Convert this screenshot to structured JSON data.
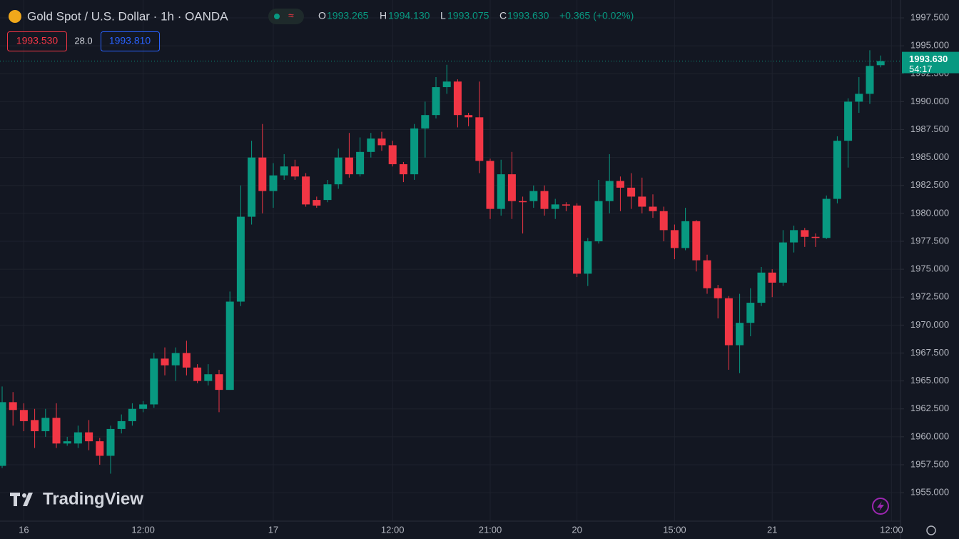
{
  "header": {
    "symbol": "Gold Spot / U.S. Dollar · 1h · OANDA",
    "o_label": "O",
    "o": "1993.265",
    "h_label": "H",
    "h": "1994.130",
    "l_label": "L",
    "l": "1993.075",
    "c_label": "C",
    "c": "1993.630",
    "change": "+0.365 (+0.02%)",
    "bid": "1993.530",
    "spread": "28.0",
    "ask": "1993.810"
  },
  "logo": "TradingView",
  "chart_data": {
    "type": "candlestick",
    "up_color": "#089981",
    "down_color": "#f23645",
    "grid": true,
    "last_price_label": "1993.630",
    "countdown": "54:17",
    "categories": [
      null,
      null,
      "16",
      null,
      null,
      null,
      null,
      null,
      null,
      null,
      null,
      null,
      null,
      "12:00",
      null,
      null,
      null,
      null,
      null,
      null,
      null,
      null,
      null,
      null,
      null,
      "17",
      null,
      null,
      null,
      null,
      null,
      null,
      null,
      null,
      null,
      null,
      "12:00",
      null,
      null,
      null,
      null,
      null,
      null,
      null,
      null,
      "21:00",
      null,
      null,
      null,
      null,
      null,
      null,
      null,
      "20",
      null,
      null,
      null,
      null,
      null,
      null,
      null,
      null,
      "15:00",
      null,
      null,
      null,
      null,
      null,
      null,
      null,
      null,
      "21",
      null,
      null,
      null,
      null,
      null,
      null,
      null,
      null,
      null,
      null,
      "12:00"
    ],
    "open": [
      1957.4,
      1963.1,
      1962.4,
      1961.5,
      1960.5,
      1961.7,
      1959.4,
      1959.4,
      1960.4,
      1959.6,
      1958.3,
      1960.7,
      1961.4,
      1962.5,
      1962.9,
      1967,
      1966.4,
      1967.5,
      1966.2,
      1965,
      1965.6,
      1964.2,
      1972.1,
      1979.7,
      1985,
      1982,
      1983.4,
      1984.2,
      1983.3,
      1981.2,
      1981.2,
      1982.6,
      1985,
      1983.5,
      1985.5,
      1986.7,
      1986.1,
      1984.4,
      1983.5,
      1987.6,
      1988.8,
      1991.3,
      1991.8,
      1988.8,
      1988.6,
      1984.7,
      1980.4,
      1983.5,
      1981.1,
      1981.1,
      1982,
      1980.4,
      1980.8,
      1980.7,
      1974.6,
      1977.5,
      1981.1,
      1982.9,
      1982.3,
      1981.5,
      1980.6,
      1980.2,
      1978.5,
      1976.9,
      1979.3,
      1975.8,
      1973.3,
      1972.4,
      1968.2,
      1970.2,
      1972,
      1974.7,
      1973.8,
      1977.4,
      1978.5,
      1977.9,
      1977.8,
      1981.3,
      1986.5,
      1990,
      1990.7,
      1993.265,
      null
    ],
    "high": [
      1964.5,
      1964,
      1963,
      1962.5,
      1962.5,
      1963,
      1960,
      1961,
      1961.5,
      1959.9,
      1961,
      1962,
      1963,
      1963.2,
      1967.5,
      1968,
      1968,
      1968.6,
      1966.5,
      1966.5,
      1966,
      1973,
      1982.5,
      1986.5,
      1988,
      1984.5,
      1985.3,
      1984.8,
      1983.6,
      1981.5,
      1983,
      1985.8,
      1987.2,
      1986.8,
      1987.2,
      1987.3,
      1986.5,
      1984.6,
      1988,
      1990,
      1992.2,
      1993.3,
      1992,
      1989,
      1991.8,
      1984.9,
      1984.8,
      1985.5,
      1981.5,
      1982.5,
      1982.5,
      1981.3,
      1981,
      1980.9,
      1977.8,
      1983,
      1985.3,
      1983.3,
      1983.6,
      1983.2,
      1981.7,
      1980.6,
      1979,
      1980.5,
      1979.4,
      1976.3,
      1973.6,
      1972.6,
      1972.8,
      1973.3,
      1975.2,
      1975,
      1978.5,
      1978.9,
      1978.7,
      1978.2,
      1981.6,
      1986.9,
      1990.3,
      1992.2,
      1994.6,
      1994.13,
      null
    ],
    "low": [
      1957.2,
      1961,
      1960.5,
      1959,
      1960,
      1959,
      1959.2,
      1959,
      1958.8,
      1957.5,
      1956.7,
      1960.3,
      1961,
      1962.2,
      1962.6,
      1965.5,
      1965,
      1965.5,
      1964.8,
      1964.6,
      1962.2,
      1964.2,
      1971.7,
      1979,
      1980,
      1980.5,
      1983,
      1983,
      1980.6,
      1980.5,
      1981,
      1982.2,
      1983.2,
      1983.3,
      1985,
      1985.6,
      1984.2,
      1982.8,
      1983,
      1985,
      1988.5,
      1990.7,
      1987.7,
      1987.8,
      1983.6,
      1979.5,
      1979.8,
      1979.5,
      1978.2,
      1980.5,
      1979.8,
      1979.5,
      1980.2,
      1974.3,
      1973.5,
      1977.3,
      1980,
      1980.2,
      1980.4,
      1980,
      1979.6,
      1977.5,
      1975.9,
      1976.7,
      1974.8,
      1972.8,
      1970.6,
      1966,
      1965.7,
      1969,
      1971.7,
      1972.5,
      1973.5,
      1976.5,
      1977,
      1977,
      1977.7,
      1980.9,
      1984.1,
      1989,
      1989.8,
      1993.075,
      null
    ],
    "close": [
      1963.1,
      1962.4,
      1961.4,
      1960.5,
      1961.7,
      1959.4,
      1959.6,
      1960.4,
      1959.6,
      1958.3,
      1960.7,
      1961.4,
      1962.5,
      1962.9,
      1967,
      1966.4,
      1967.5,
      1966.2,
      1965,
      1965.6,
      1964.2,
      1972.1,
      1979.7,
      1985,
      1982,
      1983.4,
      1984.2,
      1983.3,
      1980.8,
      1980.7,
      1982.6,
      1985,
      1983.5,
      1985.5,
      1986.7,
      1986.1,
      1984.4,
      1983.5,
      1987.6,
      1988.8,
      1991.3,
      1991.8,
      1988.8,
      1988.6,
      1984.7,
      1980.4,
      1983.5,
      1981.1,
      1981,
      1982,
      1980.4,
      1980.8,
      1980.7,
      1974.6,
      1977.5,
      1981.1,
      1982.9,
      1982.3,
      1981.5,
      1980.6,
      1980.2,
      1978.5,
      1976.9,
      1979.3,
      1975.8,
      1973.3,
      1972.4,
      1968.2,
      1970.2,
      1972,
      1974.7,
      1973.8,
      1977.4,
      1978.5,
      1977.9,
      1977.8,
      1981.3,
      1986.5,
      1990,
      1990.7,
      1993.2,
      1993.63,
      null
    ],
    "ylim": [
      1952.45,
      1999.1
    ],
    "yticks": [
      {
        "value": 1955,
        "label": "1955.000"
      },
      {
        "value": 1957.5,
        "label": "1957.500"
      },
      {
        "value": 1960,
        "label": "1960.000"
      },
      {
        "value": 1962.5,
        "label": "1962.500"
      },
      {
        "value": 1965,
        "label": "1965.000"
      },
      {
        "value": 1967.5,
        "label": "1967.500"
      },
      {
        "value": 1970,
        "label": "1970.000"
      },
      {
        "value": 1972.5,
        "label": "1972.500"
      },
      {
        "value": 1975,
        "label": "1975.000"
      },
      {
        "value": 1977.5,
        "label": "1977.500"
      },
      {
        "value": 1980,
        "label": "1980.000"
      },
      {
        "value": 1982.5,
        "label": "1982.500"
      },
      {
        "value": 1985,
        "label": "1985.000"
      },
      {
        "value": 1987.5,
        "label": "1987.500"
      },
      {
        "value": 1990,
        "label": "1990.000"
      },
      {
        "value": 1992.5,
        "label": "1992.500"
      },
      {
        "value": 1995,
        "label": "1995.000"
      },
      {
        "value": 1997.5,
        "label": "1997.500"
      }
    ]
  }
}
